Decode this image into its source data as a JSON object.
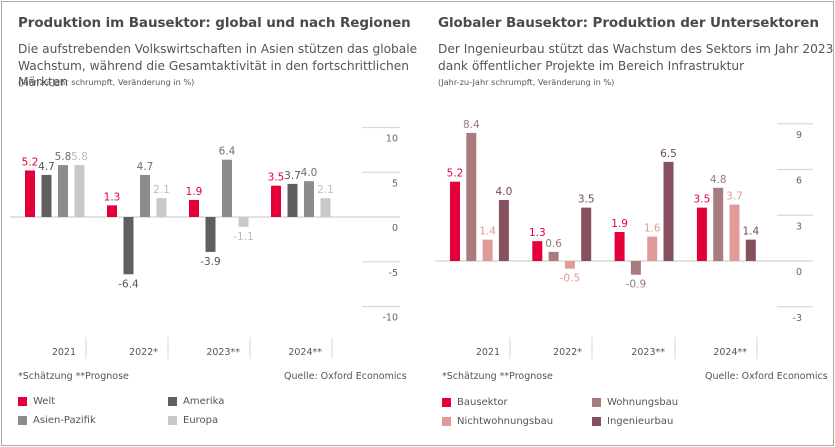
{
  "chart_data": [
    {
      "type": "bar",
      "title": "Produktion im Bausektor: global und nach Regionen",
      "subtitle": "Die aufstrebenden Volkswirtschaften in Asien stützen das globale Wachstum, während die Gesamtaktivität in den fortschrittlichen Märkten",
      "unit_note": "(Jahr-zu-Jahr schrumpft, Veränderung in %)",
      "categories": [
        "2021",
        "2022*",
        "2023**",
        "2024**"
      ],
      "series": [
        {
          "name": "Welt",
          "color": "#e4003a",
          "label_color": "#e4003a",
          "values": [
            5.2,
            1.3,
            1.9,
            3.5
          ],
          "labels": [
            "5.2",
            "1.3",
            "1.9",
            "3.5"
          ]
        },
        {
          "name": "Amerika",
          "color": "#5f5f5f",
          "label_color": "#555555",
          "values": [
            4.7,
            -6.4,
            -3.9,
            3.7
          ],
          "labels": [
            "4.7",
            "-6.4",
            "-3.9",
            "3.7"
          ]
        },
        {
          "name": "Asien-Pazifik",
          "color": "#8c8c8c",
          "label_color": "#6e6e6e",
          "values": [
            5.8,
            4.7,
            6.4,
            4.0
          ],
          "labels": [
            "5.8",
            "4.7",
            "6.4",
            "4.0"
          ]
        },
        {
          "name": "Europa",
          "color": "#c8c8c8",
          "label_color": "#bdbdbd",
          "values": [
            5.8,
            2.1,
            -1.1,
            2.1
          ],
          "labels": [
            "5.8",
            "2.1",
            "-1.1",
            "2.1"
          ]
        }
      ],
      "yticks": [
        10,
        5,
        0,
        -5,
        -10
      ],
      "ytick_labels": [
        "10",
        "5",
        "0",
        "-5",
        "-10"
      ],
      "ylim": [
        -10,
        10
      ],
      "grid": true,
      "xlabel": "",
      "ylabel": "",
      "footnote": "*Schätzung   **Prognose",
      "source": "Quelle: Oxford Economics",
      "legend_position": "bottom"
    },
    {
      "type": "bar",
      "title": "Globaler Bausektor: Produktion der Untersektoren",
      "subtitle": "Der Ingenieurbau stützt das Wachstum des Sektors im Jahr 2023 dank öffentlicher Projekte im Bereich Infrastruktur",
      "unit_note": "(Jahr-zu-Jahr schrumpft, Veränderung in %)",
      "categories": [
        "2021",
        "2022*",
        "2023**",
        "2024**"
      ],
      "series": [
        {
          "name": "Bausektor",
          "color": "#e4003a",
          "label_color": "#e4003a",
          "values": [
            5.2,
            1.3,
            1.9,
            3.5
          ],
          "labels": [
            "5.2",
            "1.3",
            "1.9",
            "3.5"
          ]
        },
        {
          "name": "Wohnungsbau",
          "color": "#a87c7e",
          "label_color": "#9a7a7c",
          "values": [
            8.4,
            0.6,
            -0.9,
            4.8
          ],
          "labels": [
            "8.4",
            "0.6",
            "-0.9",
            "4.8"
          ]
        },
        {
          "name": "Nichtwohnungsbau",
          "color": "#e09a98",
          "label_color": "#e09a98",
          "values": [
            1.4,
            -0.5,
            1.6,
            3.7
          ],
          "labels": [
            "1.4",
            "-0.5",
            "1.6",
            "3.7"
          ]
        },
        {
          "name": "Ingenieurbau",
          "color": "#86505e",
          "label_color": "#6f4a55",
          "values": [
            4.0,
            3.5,
            6.5,
            1.4
          ],
          "labels": [
            "4.0",
            "3.5",
            "6.5",
            "1.4"
          ]
        }
      ],
      "yticks": [
        9,
        6,
        3,
        0,
        -3
      ],
      "ytick_labels": [
        "9",
        "6",
        "3",
        "0",
        "-3"
      ],
      "ylim": [
        -3,
        9
      ],
      "grid": true,
      "xlabel": "",
      "ylabel": "",
      "footnote": "*Schätzung   **Prognose",
      "source": "Quelle: Oxford Economics",
      "legend_position": "bottom"
    }
  ]
}
